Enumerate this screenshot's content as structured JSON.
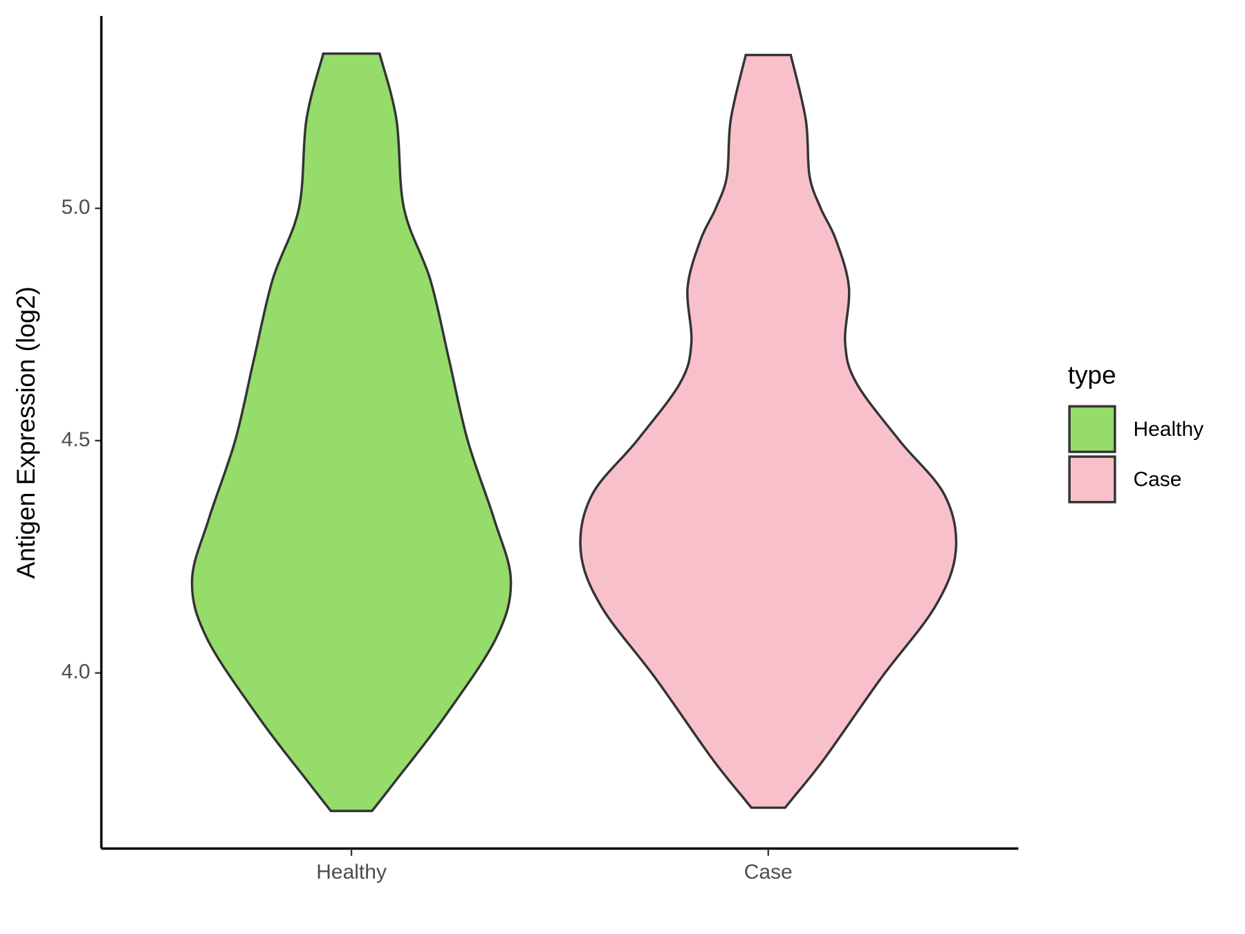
{
  "chart_data": {
    "type": "violin",
    "y_label": "Antigen Expression (log2)",
    "legend_title": "type",
    "legend_position": "right",
    "categories": [
      "Healthy",
      "Case"
    ],
    "outline_color": "#333333",
    "ylim": [
      3.622,
      5.414
    ],
    "yticks": [
      {
        "value": 4,
        "label": "4.0"
      },
      {
        "value": 4.5,
        "label": "4.5"
      },
      {
        "value": 5,
        "label": "5.0"
      }
    ],
    "series": [
      {
        "name": "Healthy",
        "color": "#95dc6b",
        "y": [
          5.333,
          5.191,
          5.0,
          4.847,
          4.675,
          4.5,
          4.332,
          4.198,
          4.074,
          3.902,
          3.765,
          3.703
        ],
        "density": [
          0.15,
          0.24,
          0.28,
          0.42,
          0.52,
          0.62,
          0.76,
          0.85,
          0.77,
          0.49,
          0.23,
          0.11
        ]
      },
      {
        "name": "Case",
        "color": "#f8c0cb",
        "y": [
          5.33,
          5.191,
          5.07,
          5.0,
          4.933,
          4.83,
          4.71,
          4.624,
          4.5,
          4.383,
          4.263,
          4.143,
          3.988,
          3.816,
          3.73,
          3.71
        ],
        "density": [
          0.12,
          0.2,
          0.22,
          0.28,
          0.36,
          0.43,
          0.41,
          0.47,
          0.7,
          0.94,
          1.0,
          0.89,
          0.6,
          0.3,
          0.13,
          0.09
        ]
      }
    ]
  }
}
